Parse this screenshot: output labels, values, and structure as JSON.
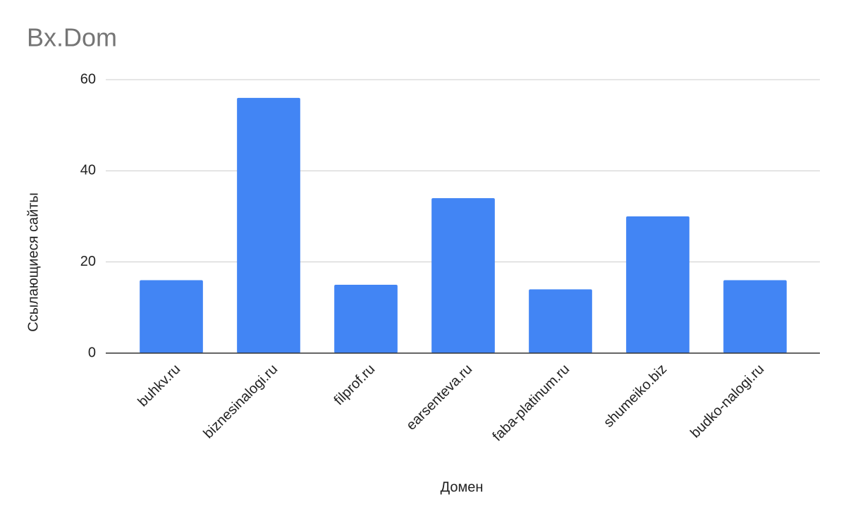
{
  "chart_data": {
    "type": "bar",
    "title": "Bx.Dom",
    "x_label": "Домен",
    "y_label": "Ссылающиеся сайты",
    "categories": [
      "buhkv.ru",
      "biznesinalogi.ru",
      "filprof.ru",
      "earsenteva.ru",
      "faba-platinum.ru",
      "shumeiko.biz",
      "budko-nalogi.ru"
    ],
    "values": [
      16,
      56,
      15,
      34,
      14,
      30,
      16
    ],
    "color": "#4285f4",
    "ylim": [
      0,
      60
    ],
    "yticks": [
      0,
      20,
      40,
      60
    ],
    "grid": true
  }
}
